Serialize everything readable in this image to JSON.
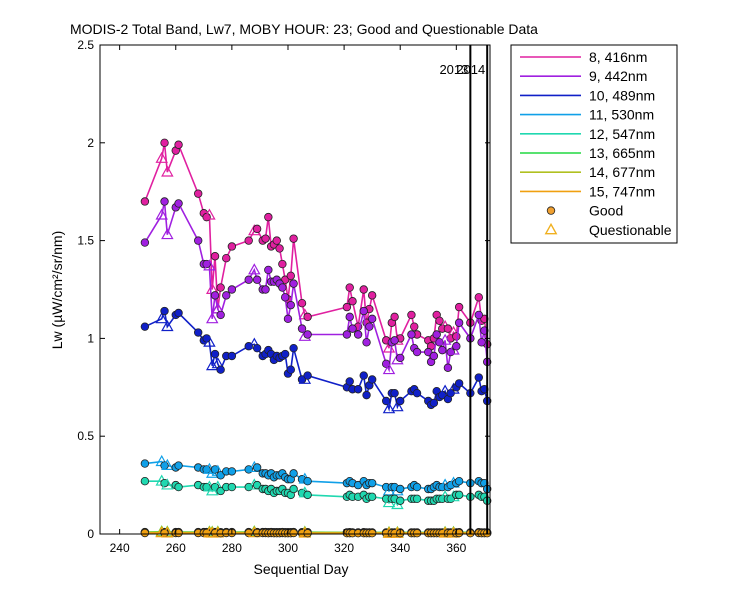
{
  "chart_data": {
    "type": "line",
    "title": "MODIS-2 Total Band,  Lw7, MOBY HOUR: 23;  Good and Questionable Data",
    "xlabel": "Sequential Day",
    "ylabel": "Lw (µW/cm²/sr/nm)",
    "xlim": [
      233,
      372
    ],
    "ylim": [
      0,
      2.5
    ],
    "xticks": [
      240,
      260,
      280,
      300,
      320,
      340,
      360
    ],
    "yticks": [
      0,
      0.5,
      1,
      1.5,
      2,
      2.5
    ],
    "xtick_labels": [
      "240",
      "260",
      "280",
      "300",
      "320",
      "340",
      "360"
    ],
    "ytick_labels": [
      "0",
      "0.5",
      "1",
      "1.5",
      "2",
      "2.5"
    ],
    "grid": false,
    "legend_position": "outside-top-right",
    "year_markers": [
      {
        "x": 365,
        "label": "2013"
      },
      {
        "x": 371,
        "label": "2014"
      }
    ],
    "x": [
      249,
      255,
      256,
      257,
      260,
      261,
      268,
      270,
      271,
      272,
      273,
      274,
      275,
      276,
      278,
      280,
      286,
      288,
      289,
      291,
      292,
      293,
      294,
      295,
      296,
      297,
      298,
      299,
      300,
      301,
      302,
      305,
      306,
      307,
      321,
      322,
      323,
      325,
      327,
      328,
      329,
      330,
      335,
      336,
      337,
      338,
      339,
      340,
      344,
      345,
      346,
      350,
      351,
      352,
      353,
      354,
      355,
      356,
      357,
      358,
      359,
      360,
      361,
      365,
      368,
      369,
      370,
      371
    ],
    "quality": [
      "G",
      "Q",
      "G",
      "Q",
      "G",
      "G",
      "G",
      "G",
      "G",
      "Q",
      "Q",
      "G",
      "Q",
      "G",
      "G",
      "G",
      "G",
      "Q",
      "G",
      "G",
      "G",
      "G",
      "G",
      "G",
      "G",
      "G",
      "G",
      "G",
      "G",
      "G",
      "G",
      "G",
      "Q",
      "G",
      "G",
      "G",
      "G",
      "G",
      "G",
      "G",
      "G",
      "G",
      "G",
      "Q",
      "G",
      "G",
      "Q",
      "G",
      "G",
      "G",
      "G",
      "G",
      "G",
      "G",
      "G",
      "G",
      "G",
      "Q",
      "G",
      "G",
      "Q",
      "G",
      "G",
      "G",
      "G",
      "G",
      "G",
      "G"
    ],
    "markers": {
      "good_color": "#f0a030",
      "questionable_color": "#f0b020"
    },
    "series": [
      {
        "name": "8, 416nm",
        "color": "#e020a0",
        "values": [
          1.7,
          1.92,
          2.0,
          1.85,
          1.96,
          1.99,
          1.74,
          1.64,
          1.62,
          1.63,
          1.25,
          1.42,
          1.15,
          1.26,
          1.41,
          1.47,
          1.5,
          1.55,
          1.56,
          1.5,
          1.51,
          1.62,
          1.47,
          1.48,
          1.5,
          1.46,
          1.38,
          1.3,
          1.2,
          1.32,
          1.51,
          1.18,
          1.12,
          1.11,
          1.16,
          1.26,
          1.19,
          1.06,
          1.25,
          1.08,
          1.15,
          1.22,
          0.99,
          0.95,
          1.08,
          1.11,
          0.99,
          1.0,
          1.12,
          1.06,
          1.02,
          0.99,
          0.96,
          1.0,
          1.12,
          1.09,
          1.05,
          1.06,
          1.05,
          1.0,
          1.03,
          1.01,
          1.16,
          1.08,
          1.21,
          1.09,
          1.1,
          0.97
        ]
      },
      {
        "name": "9, 442nm",
        "color": "#a020e0",
        "values": [
          1.49,
          1.63,
          1.7,
          1.53,
          1.67,
          1.69,
          1.5,
          1.38,
          1.38,
          1.37,
          1.1,
          1.22,
          1.15,
          1.12,
          1.22,
          1.25,
          1.3,
          1.35,
          1.3,
          1.25,
          1.25,
          1.35,
          1.29,
          1.29,
          1.3,
          1.28,
          1.26,
          1.21,
          1.1,
          1.17,
          1.28,
          1.05,
          1.01,
          1.02,
          1.02,
          1.11,
          1.05,
          1.02,
          1.14,
          0.98,
          1.06,
          1.1,
          0.87,
          0.84,
          0.98,
          0.99,
          0.89,
          0.9,
          1.02,
          0.95,
          0.93,
          0.93,
          0.88,
          0.91,
          1.02,
          0.98,
          0.94,
          0.99,
          0.85,
          0.93,
          0.94,
          0.96,
          1.08,
          1.0,
          1.12,
          0.98,
          1.04,
          0.88
        ]
      },
      {
        "name": "10, 489nm",
        "color": "#1020c8",
        "values": [
          1.06,
          1.1,
          1.14,
          1.06,
          1.12,
          1.13,
          1.03,
          0.99,
          1.0,
          0.98,
          0.86,
          0.92,
          0.87,
          0.84,
          0.91,
          0.91,
          0.96,
          0.97,
          0.95,
          0.91,
          0.92,
          0.94,
          0.92,
          0.89,
          0.91,
          0.9,
          0.91,
          0.92,
          0.82,
          0.84,
          0.95,
          0.79,
          0.79,
          0.81,
          0.75,
          0.78,
          0.74,
          0.74,
          0.81,
          0.71,
          0.76,
          0.79,
          0.68,
          0.64,
          0.72,
          0.72,
          0.65,
          0.68,
          0.73,
          0.74,
          0.72,
          0.68,
          0.66,
          0.67,
          0.73,
          0.7,
          0.71,
          0.73,
          0.69,
          0.72,
          0.74,
          0.75,
          0.77,
          0.72,
          0.8,
          0.73,
          0.74,
          0.68
        ]
      },
      {
        "name": "11, 530nm",
        "color": "#10a0e8",
        "values": [
          0.36,
          0.37,
          0.35,
          0.35,
          0.34,
          0.35,
          0.34,
          0.33,
          0.33,
          0.33,
          0.31,
          0.33,
          0.32,
          0.3,
          0.32,
          0.32,
          0.33,
          0.34,
          0.34,
          0.31,
          0.31,
          0.3,
          0.31,
          0.29,
          0.3,
          0.3,
          0.31,
          0.29,
          0.28,
          0.28,
          0.31,
          0.28,
          0.28,
          0.27,
          0.26,
          0.27,
          0.26,
          0.25,
          0.27,
          0.25,
          0.26,
          0.26,
          0.24,
          0.22,
          0.24,
          0.24,
          0.22,
          0.23,
          0.24,
          0.25,
          0.24,
          0.23,
          0.23,
          0.24,
          0.25,
          0.24,
          0.24,
          0.25,
          0.24,
          0.25,
          0.26,
          0.26,
          0.27,
          0.26,
          0.27,
          0.26,
          0.26,
          0.23
        ]
      },
      {
        "name": "12, 547nm",
        "color": "#20d8b0",
        "values": [
          0.27,
          0.27,
          0.26,
          0.25,
          0.25,
          0.24,
          0.25,
          0.24,
          0.24,
          0.24,
          0.22,
          0.24,
          0.24,
          0.22,
          0.24,
          0.24,
          0.24,
          0.25,
          0.25,
          0.23,
          0.23,
          0.22,
          0.23,
          0.21,
          0.22,
          0.22,
          0.23,
          0.21,
          0.21,
          0.2,
          0.23,
          0.21,
          0.21,
          0.2,
          0.19,
          0.2,
          0.19,
          0.19,
          0.2,
          0.18,
          0.19,
          0.19,
          0.18,
          0.16,
          0.18,
          0.18,
          0.15,
          0.17,
          0.18,
          0.18,
          0.18,
          0.17,
          0.17,
          0.17,
          0.18,
          0.18,
          0.18,
          0.19,
          0.18,
          0.18,
          0.19,
          0.2,
          0.2,
          0.19,
          0.2,
          0.19,
          0.19,
          0.17
        ]
      },
      {
        "name": "13, 665nm",
        "color": "#20d840",
        "values": [
          0.01,
          0.011,
          0.01,
          0.01,
          0.01,
          0.01,
          0.01,
          0.01,
          0.01,
          0.01,
          0.009,
          0.01,
          0.01,
          0.009,
          0.01,
          0.01,
          0.01,
          0.011,
          0.01,
          0.01,
          0.01,
          0.009,
          0.01,
          0.009,
          0.009,
          0.009,
          0.01,
          0.009,
          0.009,
          0.009,
          0.01,
          0.009,
          0.009,
          0.009,
          0.008,
          0.009,
          0.008,
          0.008,
          0.009,
          0.008,
          0.008,
          0.008,
          0.008,
          0.007,
          0.008,
          0.008,
          0.007,
          0.008,
          0.008,
          0.008,
          0.008,
          0.008,
          0.008,
          0.008,
          0.008,
          0.008,
          0.008,
          0.008,
          0.008,
          0.008,
          0.008,
          0.008,
          0.009,
          0.008,
          0.009,
          0.008,
          0.008,
          0.008
        ]
      },
      {
        "name": "14, 677nm",
        "color": "#b0c020",
        "values": [
          0.008,
          0.009,
          0.008,
          0.008,
          0.008,
          0.008,
          0.008,
          0.008,
          0.008,
          0.008,
          0.007,
          0.008,
          0.008,
          0.007,
          0.008,
          0.008,
          0.008,
          0.009,
          0.008,
          0.008,
          0.008,
          0.007,
          0.008,
          0.007,
          0.007,
          0.007,
          0.008,
          0.007,
          0.007,
          0.007,
          0.008,
          0.007,
          0.007,
          0.007,
          0.007,
          0.007,
          0.007,
          0.007,
          0.007,
          0.006,
          0.007,
          0.007,
          0.006,
          0.006,
          0.006,
          0.006,
          0.006,
          0.006,
          0.006,
          0.006,
          0.006,
          0.006,
          0.006,
          0.006,
          0.006,
          0.006,
          0.006,
          0.006,
          0.006,
          0.006,
          0.006,
          0.007,
          0.007,
          0.006,
          0.007,
          0.006,
          0.006,
          0.006
        ]
      },
      {
        "name": "15, 747nm",
        "color": "#f0a010",
        "values": [
          0.005,
          0.006,
          0.005,
          0.005,
          0.005,
          0.005,
          0.005,
          0.005,
          0.005,
          0.005,
          0.004,
          0.005,
          0.005,
          0.004,
          0.005,
          0.005,
          0.005,
          0.006,
          0.005,
          0.005,
          0.005,
          0.004,
          0.005,
          0.004,
          0.004,
          0.004,
          0.005,
          0.004,
          0.004,
          0.004,
          0.005,
          0.004,
          0.004,
          0.004,
          0.004,
          0.004,
          0.004,
          0.004,
          0.004,
          0.004,
          0.004,
          0.004,
          0.004,
          0.003,
          0.004,
          0.004,
          0.003,
          0.004,
          0.004,
          0.004,
          0.004,
          0.004,
          0.004,
          0.004,
          0.004,
          0.004,
          0.004,
          0.004,
          0.004,
          0.004,
          0.004,
          0.004,
          0.005,
          0.004,
          0.005,
          0.004,
          0.004,
          0.004
        ]
      }
    ],
    "legend": {
      "entries": [
        "8, 416nm",
        "9, 442nm",
        "10, 489nm",
        "11, 530nm",
        "12, 547nm",
        "13, 665nm",
        "14, 677nm",
        "15, 747nm"
      ],
      "marker_entries": [
        "Good",
        "Questionable"
      ]
    }
  }
}
